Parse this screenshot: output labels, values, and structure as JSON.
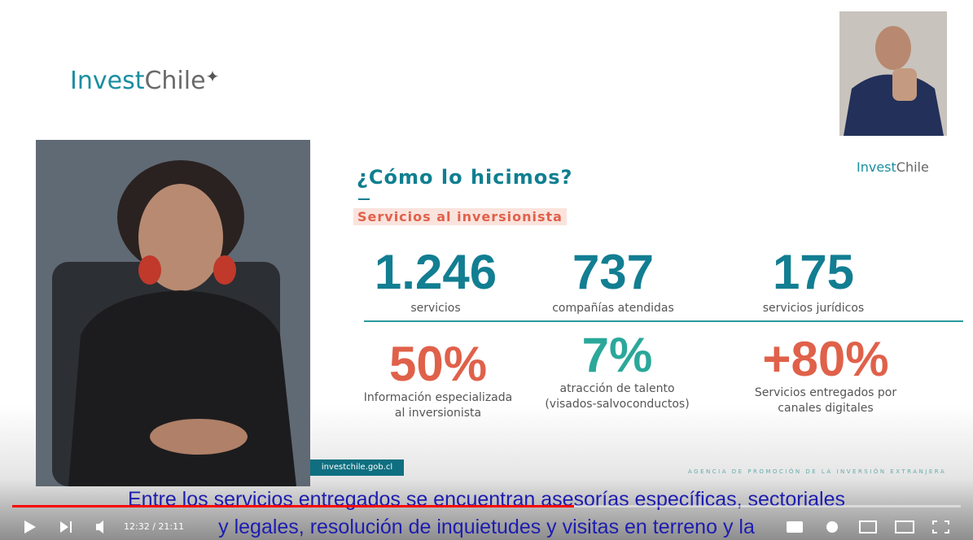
{
  "logo": {
    "parts": [
      "Invest",
      "Chile"
    ]
  },
  "slide": {
    "small_logo": {
      "parts": [
        "Invest",
        "Chile"
      ]
    },
    "title": "¿Cómo lo hicimos?",
    "subtitle": "Servicios al inversionista",
    "stats": [
      {
        "number": "1.246",
        "label": [
          "servicios"
        ]
      },
      {
        "number": "737",
        "label": [
          "compañías atendidas"
        ]
      },
      {
        "number": "175",
        "label": [
          "servicios jurídicos"
        ]
      },
      {
        "number": "50%",
        "label": [
          "Información especializada",
          "al inversionista"
        ]
      },
      {
        "number": "7%",
        "label": [
          "atracción de talento",
          "(visados-salvoconductos)"
        ]
      },
      {
        "number": "+80%",
        "label": [
          "Servicios entregados por",
          "canales digitales"
        ]
      }
    ],
    "website": "investchile.gob.cl",
    "footer": "AGENCIA DE PROMOCIÓN DE LA INVERSIÓN EXTRANJERA"
  },
  "captions": [
    "Entre los servicios entregados se encuentran asesorías específicas, sectoriales",
    "y legales, resolución de inquietudes y visitas en terreno y la"
  ],
  "player": {
    "time": "12:32 / 21:11"
  }
}
